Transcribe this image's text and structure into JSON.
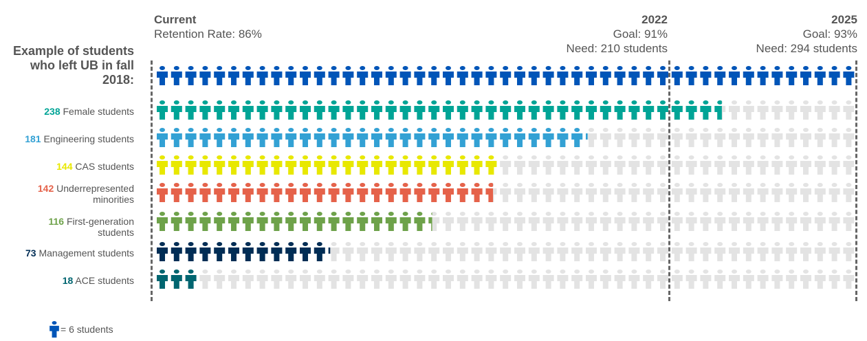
{
  "header": {
    "current_title": "Current",
    "current_sub": "Retention Rate: 86%",
    "goal2022_title": "2022",
    "goal2022_goal": "Goal: 91%",
    "goal2022_need": "Need: 210 students",
    "goal2025_title": "2025",
    "goal2025_goal": "Goal: 93%",
    "goal2025_need": "Need: 294 students"
  },
  "side_title": "Example of students who left UB in fall 2018:",
  "legend": {
    "icon": "person-icon",
    "text": "= 6 students"
  },
  "colors": {
    "empty": "#e3e3e3",
    "reference": "#0055b8"
  },
  "chart_data": {
    "type": "pictograph",
    "students_per_icon": 6,
    "reference": {
      "label": "Need 2025",
      "value": 294,
      "color": "#0055b8"
    },
    "thresholds": [
      {
        "label": "2022",
        "value": 210
      },
      {
        "label": "2025",
        "value": 294
      }
    ],
    "series": [
      {
        "num": "238",
        "name": "Female students",
        "value": 238,
        "color": "#00a496"
      },
      {
        "num": "181",
        "name": "Engineering students",
        "value": 181,
        "color": "#33a1d4"
      },
      {
        "num": "144",
        "name": "CAS students",
        "value": 144,
        "color": "#e8e800"
      },
      {
        "num": "142",
        "name": "Underrepresented minorities",
        "value": 142,
        "color": "#e5624a"
      },
      {
        "num": "116",
        "name": "First-generation students",
        "value": 116,
        "color": "#6ea24a"
      },
      {
        "num": "73",
        "name": "Management students",
        "value": 73,
        "color": "#002d55"
      },
      {
        "num": "18",
        "name": "ACE students",
        "value": 18,
        "color": "#006570"
      }
    ]
  }
}
